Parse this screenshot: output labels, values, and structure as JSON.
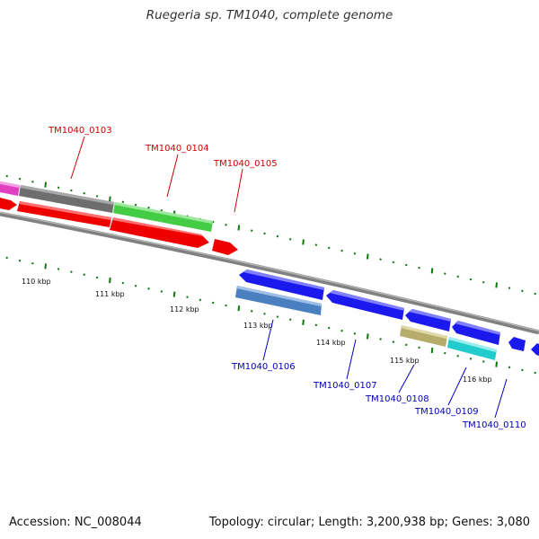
{
  "title": "Ruegeria sp. TM1040, complete genome",
  "footer": {
    "accession": "Accession: NC_008044",
    "summary": "Topology: circular; Length: 3,200,938 bp; Genes: 3,080"
  },
  "colors": {
    "backbone": "#808080",
    "forward_label": "#cc0000",
    "reverse_label": "#0000bb",
    "ticks": "#117711"
  },
  "tick_labels": [
    {
      "text": "110 kbp",
      "kbp": 110
    },
    {
      "text": "111 kbp",
      "kbp": 111
    },
    {
      "text": "112 kbp",
      "kbp": 112
    },
    {
      "text": "113 kbp",
      "kbp": 113
    },
    {
      "text": "114 kbp",
      "kbp": 114
    },
    {
      "text": "115 kbp",
      "kbp": 115
    },
    {
      "text": "116 kbp",
      "kbp": 116
    }
  ],
  "forward_labels": [
    "TM1040_0103",
    "TM1040_0104",
    "TM1040_0105"
  ],
  "reverse_labels": [
    "TM1040_0106",
    "TM1040_0107",
    "TM1040_0108",
    "TM1040_0109",
    "TM1040_0110"
  ]
}
